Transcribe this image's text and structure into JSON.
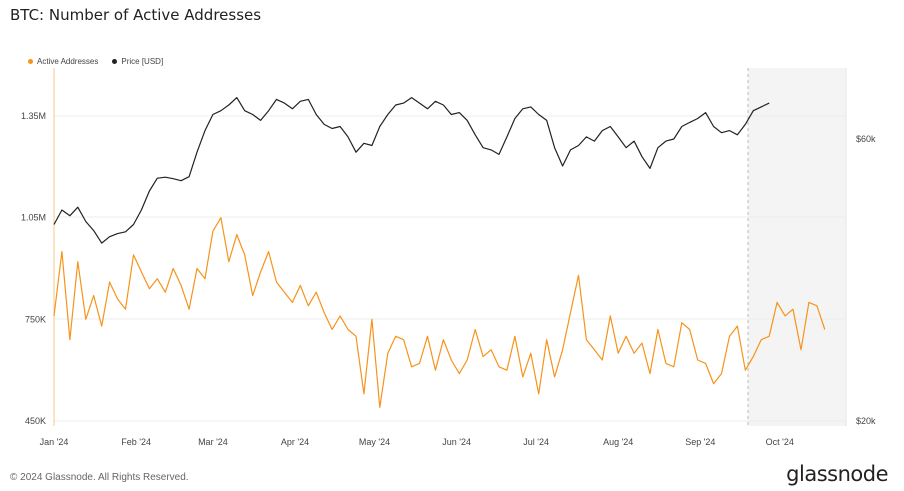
{
  "title": "BTC: Number of Active Addresses",
  "legend": [
    {
      "label": "Active Addresses",
      "color": "#f7931a"
    },
    {
      "label": "Price [USD]",
      "color": "#222222"
    }
  ],
  "footer": "© 2024 Glassnode. All Rights Reserved.",
  "logo": "glassnode",
  "chart_data": {
    "type": "line",
    "title": "BTC: Number of Active Addresses",
    "x_ticks": [
      "Jan '24",
      "Feb '24",
      "Mar '24",
      "Apr '24",
      "May '24",
      "Jun '24",
      "Jul '24",
      "Aug '24",
      "Sep '24",
      "Oct '24"
    ],
    "left_axis": {
      "ticks": [
        "450K",
        "750K",
        "1.05M",
        "1.35M"
      ],
      "tick_values": [
        450000,
        750000,
        1050000,
        1350000
      ],
      "ylim": [
        450000,
        1350000
      ]
    },
    "right_axis": {
      "ticks": [
        "$20k",
        "$60k"
      ],
      "tick_values": [
        20000,
        60000
      ],
      "scale": "log"
    },
    "highlight_start": "2024-09-19",
    "series": [
      {
        "name": "Active Addresses",
        "axis": "left",
        "color": "#f7931a",
        "start": "2024-01-01",
        "step_days": 3,
        "values": [
          760000,
          950000,
          690000,
          920000,
          750000,
          820000,
          730000,
          860000,
          810000,
          780000,
          940000,
          890000,
          840000,
          870000,
          830000,
          900000,
          850000,
          780000,
          900000,
          870000,
          1010000,
          1050000,
          920000,
          1000000,
          940000,
          820000,
          890000,
          950000,
          860000,
          830000,
          800000,
          850000,
          790000,
          830000,
          770000,
          720000,
          760000,
          720000,
          700000,
          530000,
          750000,
          490000,
          650000,
          700000,
          690000,
          610000,
          620000,
          700000,
          600000,
          690000,
          630000,
          590000,
          630000,
          720000,
          640000,
          660000,
          610000,
          600000,
          700000,
          580000,
          650000,
          530000,
          690000,
          580000,
          660000,
          770000,
          880000,
          690000,
          660000,
          630000,
          760000,
          650000,
          700000,
          650000,
          680000,
          590000,
          720000,
          620000,
          610000,
          740000,
          720000,
          630000,
          620000,
          560000,
          590000,
          700000,
          730000,
          600000,
          640000,
          690000,
          700000,
          800000,
          760000,
          780000,
          660000,
          800000,
          790000,
          720000
        ]
      },
      {
        "name": "Price [USD]",
        "axis": "right",
        "color": "#222222",
        "start": "2024-01-01",
        "step_days": 3,
        "values": [
          43000,
          45500,
          44500,
          46000,
          43500,
          42000,
          40000,
          41000,
          41500,
          41800,
          43000,
          45500,
          49000,
          51500,
          51700,
          51400,
          51000,
          51800,
          57000,
          62000,
          66000,
          67000,
          68500,
          70500,
          67000,
          66000,
          64500,
          67000,
          70000,
          69000,
          67500,
          69500,
          70000,
          66000,
          63500,
          62500,
          63000,
          60500,
          57000,
          59000,
          58500,
          63000,
          66000,
          68500,
          69000,
          70500,
          69000,
          67500,
          69500,
          68500,
          66000,
          66500,
          64500,
          61000,
          58000,
          57500,
          56500,
          60500,
          65000,
          67500,
          68000,
          66000,
          64500,
          58000,
          54000,
          57500,
          58500,
          60500,
          59500,
          62000,
          63000,
          60500,
          58000,
          59500,
          56000,
          53500,
          58000,
          59500,
          60000,
          63000,
          64000,
          65000,
          66500,
          63000,
          61500,
          62000,
          61000,
          63500,
          67000,
          68000,
          69000
        ]
      }
    ]
  }
}
